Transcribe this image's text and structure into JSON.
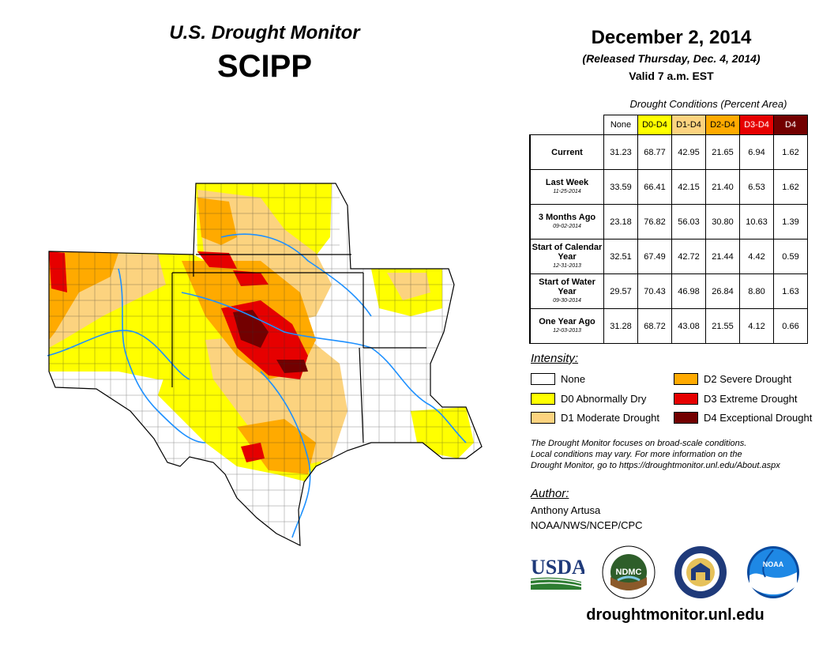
{
  "header": {
    "title": "U.S. Drought Monitor",
    "region": "SCIPP",
    "date": "December 2, 2014",
    "released": "(Released Thursday, Dec. 4, 2014)",
    "valid": "Valid 7 a.m. EST"
  },
  "table": {
    "caption": "Drought Conditions (Percent Area)",
    "columns": [
      {
        "label": "None",
        "color": "#ffffff",
        "text_color": "#000000"
      },
      {
        "label": "D0-D4",
        "color": "#ffff00",
        "text_color": "#000000"
      },
      {
        "label": "D1-D4",
        "color": "#fcd37f",
        "text_color": "#000000"
      },
      {
        "label": "D2-D4",
        "color": "#ffaa00",
        "text_color": "#000000"
      },
      {
        "label": "D3-D4",
        "color": "#e60000",
        "text_color": "#ffffff"
      },
      {
        "label": "D4",
        "color": "#730000",
        "text_color": "#ffffff"
      }
    ],
    "rows": [
      {
        "label": "Current",
        "sub": "",
        "values": [
          "31.23",
          "68.77",
          "42.95",
          "21.65",
          "6.94",
          "1.62"
        ]
      },
      {
        "label": "Last Week",
        "sub": "11-25-2014",
        "values": [
          "33.59",
          "66.41",
          "42.15",
          "21.40",
          "6.53",
          "1.62"
        ]
      },
      {
        "label": "3 Months Ago",
        "sub": "09-02-2014",
        "values": [
          "23.18",
          "76.82",
          "56.03",
          "30.80",
          "10.63",
          "1.39"
        ]
      },
      {
        "label": "Start of Calendar Year",
        "sub": "12-31-2013",
        "values": [
          "32.51",
          "67.49",
          "42.72",
          "21.44",
          "4.42",
          "0.59"
        ]
      },
      {
        "label": "Start of Water Year",
        "sub": "09-30-2014",
        "values": [
          "29.57",
          "70.43",
          "46.98",
          "26.84",
          "8.80",
          "1.63"
        ]
      },
      {
        "label": "One Year Ago",
        "sub": "12-03-2013",
        "values": [
          "31.28",
          "68.72",
          "43.08",
          "21.55",
          "4.12",
          "0.66"
        ]
      }
    ]
  },
  "legend": {
    "title": "Intensity:",
    "items": [
      {
        "label": "None",
        "color": "#ffffff"
      },
      {
        "label": "D0 Abnormally Dry",
        "color": "#ffff00"
      },
      {
        "label": "D1 Moderate Drought",
        "color": "#fcd37f"
      },
      {
        "label": "D2 Severe Drought",
        "color": "#ffaa00"
      },
      {
        "label": "D3 Extreme Drought",
        "color": "#e60000"
      },
      {
        "label": "D4 Exceptional Drought",
        "color": "#730000"
      }
    ]
  },
  "note": {
    "line1": "The Drought Monitor focuses on broad-scale conditions.",
    "line2": "Local conditions may vary. For more information on the",
    "line3": "Drought Monitor, go to https://droughtmonitor.unl.edu/About.aspx"
  },
  "author": {
    "title": "Author:",
    "name": "Anthony Artusa",
    "org": "NOAA/NWS/NCEP/CPC"
  },
  "logos": {
    "usda": "USDA",
    "ndmc": "NDMC",
    "noaa": "NOAA"
  },
  "footer": {
    "site": "droughtmonitor.unl.edu"
  }
}
